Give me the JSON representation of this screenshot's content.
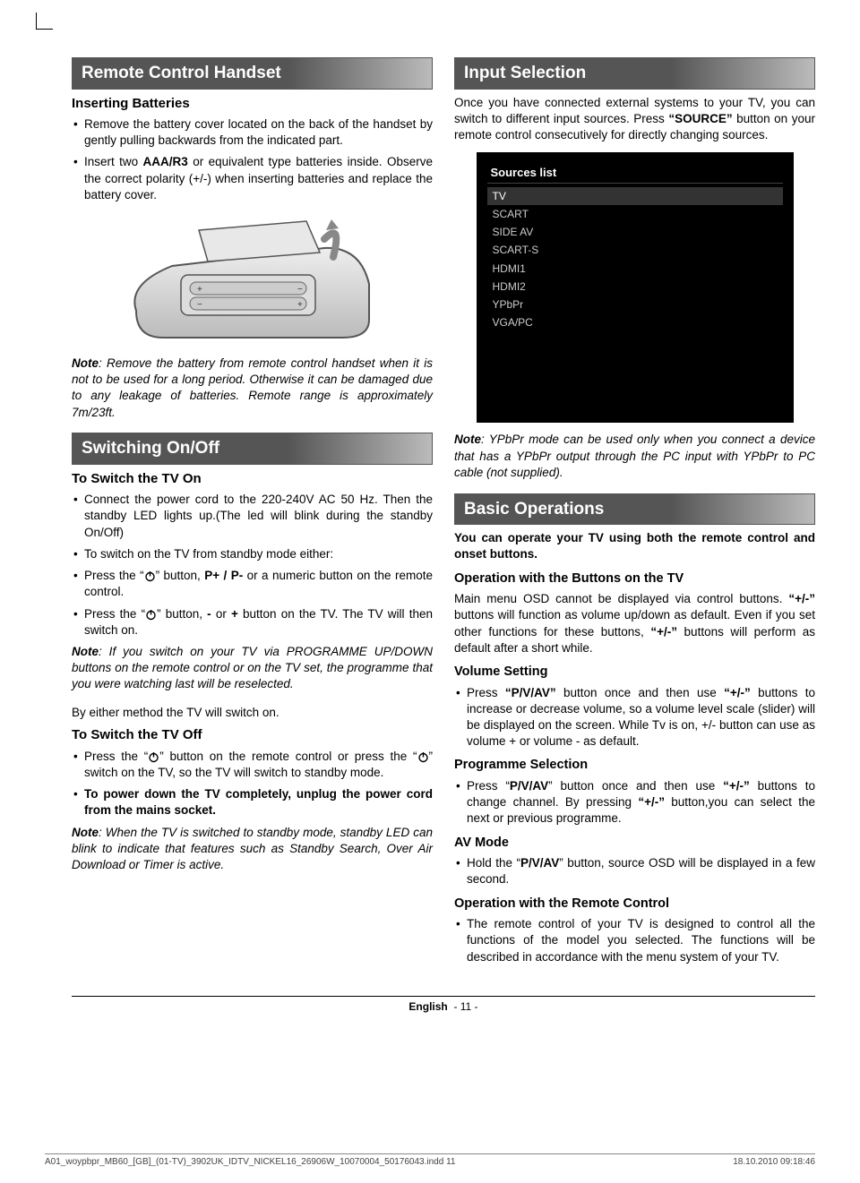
{
  "col1": {
    "h1": "Remote Control Handset",
    "sub1": "Inserting Batteries",
    "b1": "Remove the battery cover located on the back of the handset by gently pulling backwards from the indicated part.",
    "b2_pre": "Insert two ",
    "b2_bold": "AAA/R3",
    "b2_post": " or equivalent type batteries inside. Observe the correct polarity (+/-) when inserting batteries and replace the battery cover.",
    "note1_bold": "Note",
    "note1": ": Remove the battery from remote control handset when it is not to be used for a long period. Otherwise it can be damaged due to any leakage of batteries. Remote range is approximately 7m/23ft.",
    "h2": "Switching On/Off",
    "sub2": "To Switch the TV On",
    "s1": " Connect the power cord to the 220-240V AC 50 Hz. Then the standby LED lights up.(The led will blink during the standby On/Off)",
    "s2": " To switch on the TV from standby mode either:",
    "s3a": " Press the “",
    "s3b": "” button, ",
    "s3bold": "P+ / P-",
    "s3c": " or a numeric button on the remote control.",
    "s4a": " Press the “",
    "s4b": "” button, ",
    "s4bold1": "-",
    "s4mid": " or ",
    "s4bold2": "+",
    "s4c": " button on the TV. The TV will then switch on.",
    "note2_bold": "Note",
    "note2": ": If you switch on your TV via PROGRAMME UP/DOWN buttons on the remote control or on the TV set, the programme that you were watching last will be reselected.",
    "p1": "By either method the TV will switch on.",
    "sub3": "To Switch the TV Off",
    "o1a": "Press the “",
    "o1b": "” button on the remote control or press the “",
    "o1c": "” switch on the TV, so the TV will switch to standby mode.",
    "o2": "To power down the TV completely, unplug the power cord from the mains socket.",
    "note3_bold": "Note",
    "note3": ": When the TV is switched to standby mode, standby LED can blink to indicate that features such as Standby Search, Over Air Download or Timer is active."
  },
  "col2": {
    "h1": "Input Selection",
    "p1a": "Once you have connected external systems to your TV, you can switch to different input sources. Press ",
    "p1bold": "“SOURCE”",
    "p1b": " button on your remote control consecutively for directly changing sources.",
    "sources_title": "Sources list",
    "sources": [
      "TV",
      "SCART",
      "SIDE AV",
      "SCART-S",
      "HDMI1",
      "HDMI2",
      "YPbPr",
      "VGA/PC"
    ],
    "note1_bold": "Note",
    "note1": ": YPbPr mode can be used only when you connect a device that has a YPbPr output through the PC input with YPbPr to PC cable (not supplied).",
    "h2": "Basic Operations",
    "p2": "You can operate your TV using both the remote control and onset buttons.",
    "sub1": "Operation with the Buttons on the TV",
    "p3a": "Main menu OSD cannot be displayed via control buttons. ",
    "p3bold1": "“+/-”",
    "p3b": " buttons will function as volume up/down as default. Even if you set other functions for these buttons, ",
    "p3bold2": "“+/-”",
    "p3c": " buttons will perform as default after a short while.",
    "sub2": "Volume Setting",
    "v1a": "Press ",
    "v1bold1": "“P/V/AV”",
    "v1b": " button once and then use ",
    "v1bold2": "“+/-”",
    "v1c": " buttons to increase or decrease volume, so a volume level scale (slider) will be displayed on the screen. While Tv is on, +/- button can use as volume + or volume - as default.",
    "sub3": "Programme Selection",
    "pr1a": "Press “",
    "pr1bold1": "P/V/AV",
    "pr1b": "” button once and then use ",
    "pr1bold2": "“+/-”",
    "pr1c": " buttons to change channel. By pressing ",
    "pr1bold3": "“+/-”",
    "pr1d": " button,you can select the next or previous programme.",
    "sub4": "AV Mode",
    "av1a": "Hold the “",
    "av1bold": "P/V/AV",
    "av1b": "” button, source OSD will be displayed in a few second.",
    "sub5": "Operation with the Remote Control",
    "rc1": "The remote control of your TV is designed to control all the functions of the model you selected. The functions will be described in accordance with the menu system of your TV."
  },
  "footer": {
    "lang": "English",
    "page": "- 11 -",
    "file": "A01_woypbpr_MB60_[GB]_(01-TV)_3902UK_IDTV_NICKEL16_26906W_10070004_50176043.indd   11",
    "date": "18.10.2010   09:18:46"
  },
  "colors": {
    "heading_bg_start": "#555555",
    "heading_bg_end": "#bbbbbb",
    "text": "#000000",
    "sources_bg": "#000000",
    "sources_text": "#cccccc"
  }
}
